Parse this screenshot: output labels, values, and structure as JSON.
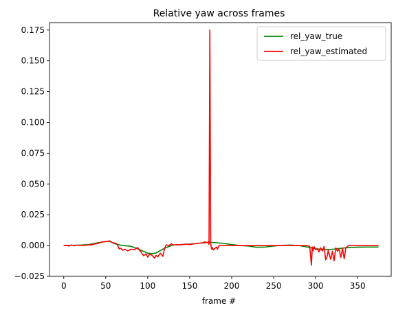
{
  "chart_data": {
    "type": "line",
    "title": "Relative yaw across frames",
    "xlabel": "frame #",
    "ylabel": "",
    "xlim": [
      -17,
      390
    ],
    "ylim": [
      -0.025,
      0.181
    ],
    "xticks": [
      0,
      50,
      100,
      150,
      200,
      250,
      300,
      350
    ],
    "yticks": [
      -0.025,
      0.0,
      0.025,
      0.05,
      0.075,
      0.1,
      0.125,
      0.15,
      0.175
    ],
    "ytick_labels": [
      "−0.025",
      "0.000",
      "0.025",
      "0.050",
      "0.075",
      "0.100",
      "0.125",
      "0.150",
      "0.175"
    ],
    "xtick_labels": [
      "0",
      "50",
      "100",
      "150",
      "200",
      "250",
      "300",
      "350"
    ],
    "legend_position": "top-right",
    "grid": false,
    "series": [
      {
        "name": "rel_yaw_true",
        "color": "#008000",
        "x": [
          0,
          10,
          20,
          30,
          40,
          50,
          55,
          60,
          70,
          80,
          90,
          100,
          105,
          110,
          120,
          130,
          140,
          150,
          160,
          170,
          175,
          180,
          190,
          200,
          210,
          220,
          230,
          240,
          250,
          260,
          270,
          280,
          290,
          300,
          310,
          320,
          330,
          340,
          350,
          360,
          375
        ],
        "y": [
          0.0,
          0.0002,
          0.0004,
          0.0008,
          0.0022,
          0.0033,
          0.0034,
          0.0016,
          0.0,
          -0.0006,
          -0.0032,
          -0.0062,
          -0.0066,
          -0.006,
          -0.0022,
          0.0004,
          0.0008,
          0.0012,
          0.0018,
          0.0024,
          0.0026,
          0.0024,
          0.0018,
          0.0008,
          0.0,
          -0.0004,
          -0.0014,
          -0.0012,
          -0.0004,
          0.0002,
          0.0004,
          0.0,
          -0.0012,
          -0.0026,
          -0.0033,
          -0.003,
          -0.0022,
          -0.0016,
          -0.0013,
          -0.0012,
          -0.0012
        ]
      },
      {
        "name": "rel_yaw_estimated",
        "color": "#ff0000",
        "x": [
          0,
          3,
          6,
          9,
          12,
          15,
          18,
          21,
          24,
          27,
          30,
          33,
          36,
          40,
          45,
          50,
          55,
          58,
          62,
          64,
          66,
          68,
          70,
          73,
          76,
          80,
          84,
          88,
          90,
          92,
          95,
          98,
          100,
          102,
          105,
          108,
          110,
          112,
          115,
          118,
          120,
          122,
          125,
          128,
          131,
          135,
          140,
          145,
          150,
          155,
          160,
          165,
          168,
          170,
          172,
          173,
          174,
          175,
          176,
          177,
          178,
          180,
          182,
          183,
          185,
          190,
          200,
          220,
          240,
          260,
          280,
          290,
          293,
          295,
          296,
          297,
          298,
          300,
          302,
          304,
          306,
          308,
          310,
          312,
          314,
          315,
          316,
          318,
          320,
          322,
          324,
          326,
          328,
          330,
          332,
          334,
          336,
          338,
          340,
          350,
          360,
          375
        ],
        "y": [
          0.0,
          0.0003,
          -0.0004,
          0.0005,
          -0.0002,
          0.0004,
          0.0001,
          0.0002,
          0.0,
          0.0004,
          0.0006,
          0.0005,
          0.0012,
          0.0016,
          0.0028,
          0.0032,
          0.0038,
          0.0024,
          0.0018,
          0.0006,
          -0.0028,
          -0.0022,
          -0.0038,
          -0.003,
          -0.0044,
          -0.003,
          -0.0034,
          -0.0016,
          -0.0036,
          -0.0052,
          -0.0082,
          -0.0068,
          -0.0094,
          -0.0072,
          -0.0078,
          -0.0102,
          -0.008,
          -0.0092,
          -0.0062,
          -0.0088,
          -0.0024,
          0.0006,
          -0.0002,
          0.0014,
          0.0004,
          0.0008,
          0.0006,
          0.0012,
          0.0008,
          0.0014,
          0.0018,
          0.0022,
          0.003,
          0.0024,
          0.0028,
          0.001,
          0.175,
          0.0016,
          -0.0028,
          -0.0016,
          -0.0036,
          -0.0024,
          -0.0012,
          -0.003,
          0.0,
          0.0,
          0.0,
          0.0,
          0.0,
          0.0,
          0.0,
          0.0,
          -0.0008,
          -0.016,
          -0.0012,
          -0.0042,
          -0.0008,
          -0.0034,
          -0.0024,
          -0.0052,
          -0.0018,
          -0.0044,
          -0.0008,
          -0.0116,
          -0.0082,
          -0.0038,
          -0.0066,
          -0.0112,
          -0.0046,
          -0.0124,
          -0.0018,
          -0.0046,
          -0.0028,
          -0.0096,
          -0.0022,
          -0.0108,
          -0.0018,
          -0.0006,
          0.0,
          0.0,
          0.0,
          0.0
        ]
      }
    ]
  }
}
